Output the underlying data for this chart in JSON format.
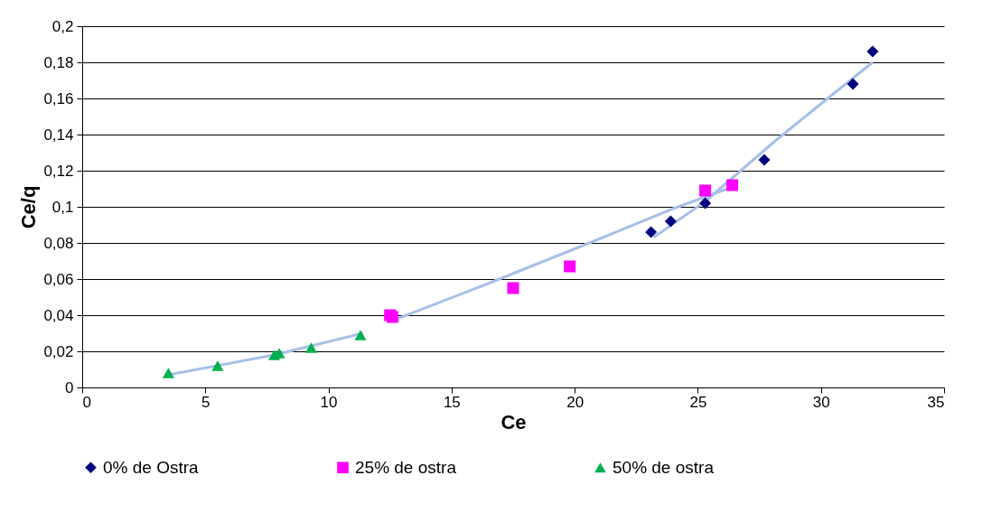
{
  "chart_data": {
    "type": "scatter",
    "xlabel": "Ce",
    "ylabel": "Ce/q",
    "xlim": [
      0,
      35
    ],
    "ylim": [
      0,
      0.2
    ],
    "xticks": [
      0,
      5,
      10,
      15,
      20,
      25,
      30,
      35
    ],
    "yticks": [
      0,
      {
        "value": 0.02,
        "label": "0,02"
      },
      {
        "value": 0.04,
        "label": "0,04"
      },
      {
        "value": 0.06,
        "label": "0,06"
      },
      {
        "value": 0.08,
        "label": "0,08"
      },
      {
        "value": 0.1,
        "label": "0,1"
      },
      {
        "value": 0.12,
        "label": "0,12"
      },
      {
        "value": 0.14,
        "label": "0,14"
      },
      {
        "value": 0.16,
        "label": "0,16"
      },
      {
        "value": 0.18,
        "label": "0,18"
      },
      {
        "value": 0.2,
        "label": "0,2"
      }
    ],
    "grid": "y",
    "legend": "bottom",
    "series": [
      {
        "type": "line",
        "color": "#a8c0e8",
        "x": [
          23.2,
          25.3,
          28.1,
          30.0,
          32.1
        ],
        "values": [
          0.083,
          0.103,
          0.136,
          0.157,
          0.18
        ]
      },
      {
        "type": "line",
        "color": "#a8c0e8",
        "x": [
          12.6,
          16.2,
          20.6,
          24.0,
          26.4
        ],
        "values": [
          0.037,
          0.056,
          0.08,
          0.099,
          0.111
        ]
      },
      {
        "type": "line",
        "color": "#a8c0e8",
        "x": [
          3.5,
          7.8,
          11.4
        ],
        "values": [
          0.007,
          0.018,
          0.03
        ]
      },
      {
        "name": "0% de Ostra",
        "marker": "diamond",
        "color": "#000080",
        "x": [
          23.1,
          23.9,
          25.3,
          27.7,
          31.3,
          32.1
        ],
        "values": [
          0.086,
          0.092,
          0.102,
          0.126,
          0.168,
          0.186
        ]
      },
      {
        "name": "25% de ostra",
        "marker": "square",
        "color": "#ff00ff",
        "x": [
          12.5,
          12.6,
          17.5,
          19.8,
          25.3,
          26.4
        ],
        "values": [
          0.04,
          0.039,
          0.055,
          0.067,
          0.109,
          0.112
        ]
      },
      {
        "name": "50% de ostra",
        "marker": "triangle",
        "color": "#00b050",
        "x": [
          3.5,
          5.5,
          7.8,
          8.0,
          9.3,
          11.3
        ],
        "values": [
          0.008,
          0.012,
          0.018,
          0.019,
          0.022,
          0.029
        ]
      }
    ]
  }
}
